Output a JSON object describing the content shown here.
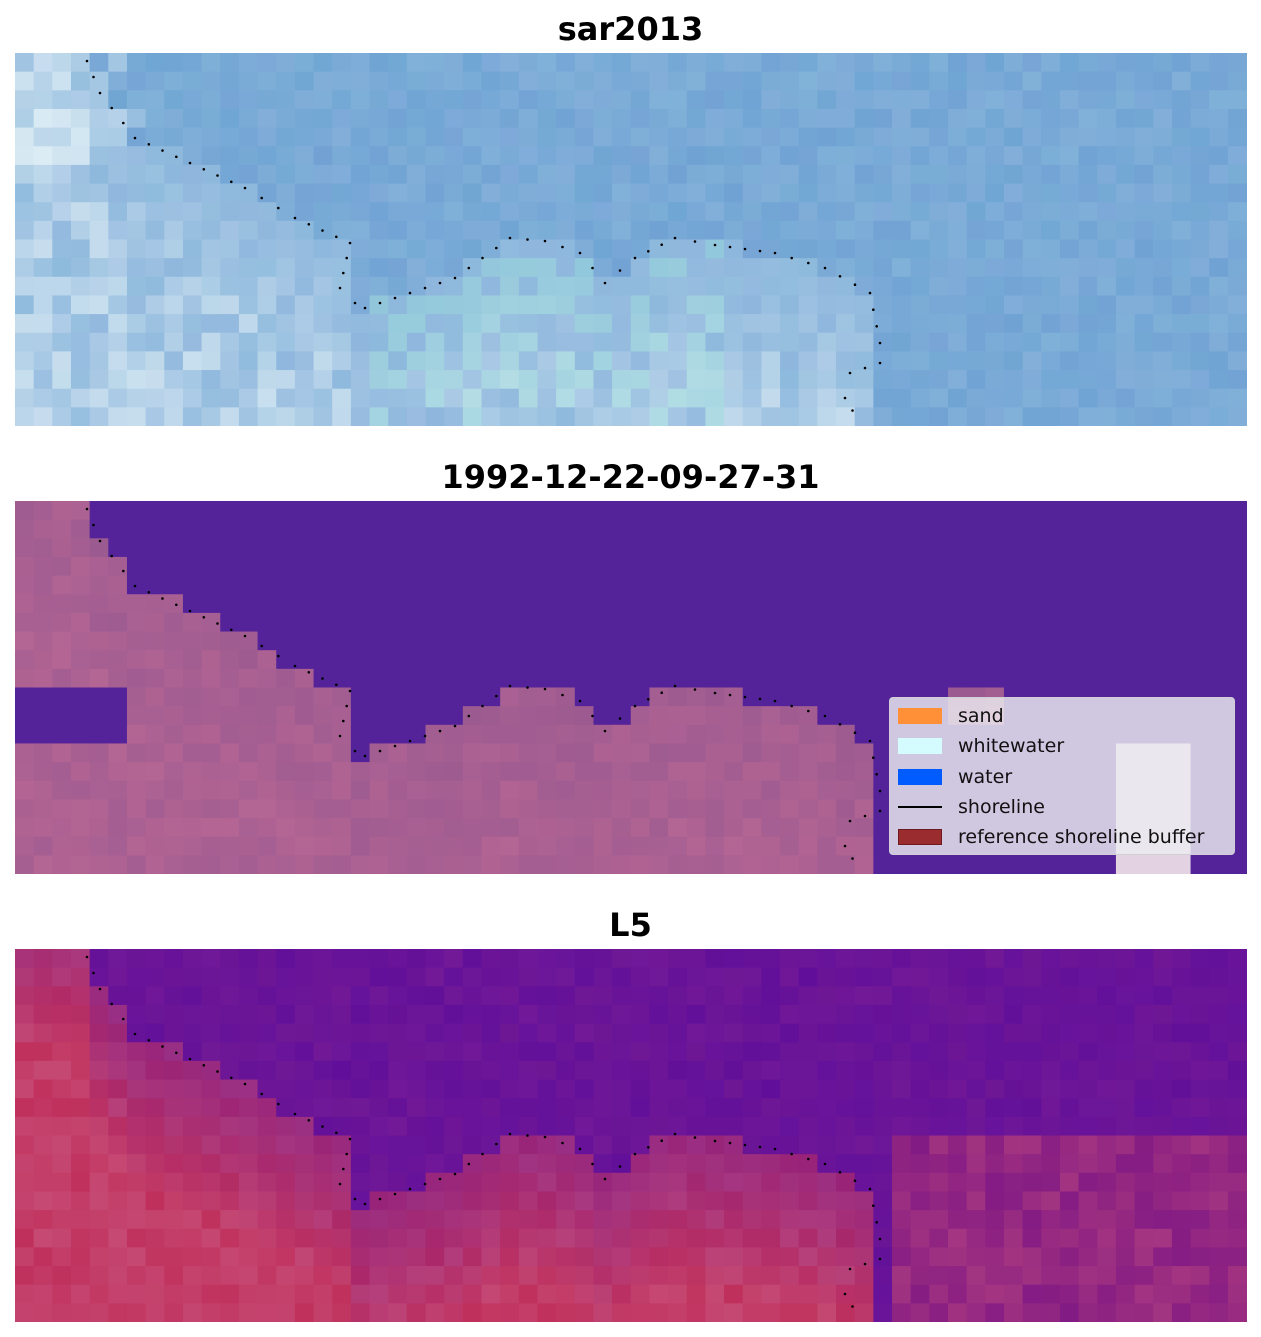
{
  "panels": [
    {
      "title": "sar2013",
      "palette": "sar"
    },
    {
      "title": "1992-12-22-09-27-31",
      "palette": "class"
    },
    {
      "title": "L5",
      "palette": "l5"
    }
  ],
  "legend": {
    "items": [
      {
        "label": "sand",
        "color": "#ff9038",
        "kind": "patch"
      },
      {
        "label": "whitewater",
        "color": "#d4fcff",
        "kind": "patch"
      },
      {
        "label": "water",
        "color": "#005cff",
        "kind": "patch"
      },
      {
        "label": "shoreline",
        "color": "#000000",
        "kind": "line"
      },
      {
        "label": "reference shoreline buffer",
        "color": "#9a2b2f",
        "kind": "patch"
      }
    ]
  },
  "colors": {
    "sar_base": "#6fa6d3",
    "class_water": "#54239a",
    "class_land": "#9b5a90",
    "l5_water": "#66139c",
    "l5_land": "#c0305c",
    "shoreline_dots": "#000000"
  }
}
